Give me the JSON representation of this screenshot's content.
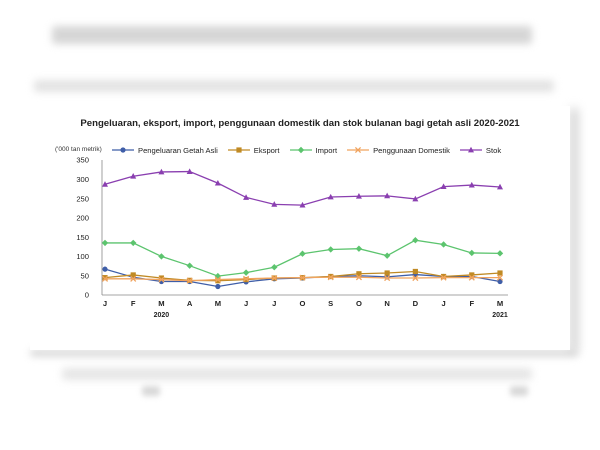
{
  "chart_data": {
    "type": "line",
    "title": "Pengeluaran, eksport, import, penggunaan domestik dan stok bulanan bagi getah asli 2020-2021",
    "ylabel": "('000 tan metrik)",
    "xlabel": "",
    "ylim": [
      0,
      350
    ],
    "yticks": [
      0,
      50,
      100,
      150,
      200,
      250,
      300,
      350
    ],
    "grid": false,
    "legend_position": "top",
    "categories": [
      "J",
      "F",
      "M",
      "A",
      "M",
      "J",
      "J",
      "O",
      "S",
      "O",
      "N",
      "D",
      "J",
      "F",
      "M"
    ],
    "year_labels": [
      {
        "index": 2,
        "label": "2020"
      },
      {
        "index": 14,
        "label": "2021"
      }
    ],
    "series": [
      {
        "name": "Pengeluaran Getah Asli",
        "color": "#3f5ea8",
        "marker": "circle",
        "values": [
          67,
          46,
          35,
          35,
          22,
          34,
          42,
          44,
          48,
          50,
          47,
          53,
          48,
          48,
          35
        ]
      },
      {
        "name": "Eksport",
        "color": "#c08a24",
        "marker": "square",
        "values": [
          45,
          52,
          44,
          38,
          37,
          40,
          44,
          45,
          48,
          55,
          57,
          61,
          48,
          52,
          57
        ]
      },
      {
        "name": "Import",
        "color": "#5cc46e",
        "marker": "diamond",
        "values": [
          135,
          135,
          100,
          76,
          49,
          58,
          72,
          107,
          118,
          120,
          102,
          142,
          131,
          109,
          108
        ]
      },
      {
        "name": "Penggunaan Domestik",
        "color": "#f0a35e",
        "marker": "x",
        "values": [
          42,
          42,
          40,
          37,
          40,
          42,
          44,
          45,
          46,
          46,
          44,
          44,
          45,
          45,
          45
        ]
      },
      {
        "name": "Stok",
        "color": "#8a3fb0",
        "marker": "triangle",
        "values": [
          287,
          308,
          319,
          320,
          290,
          253,
          235,
          233,
          254,
          256,
          257,
          249,
          281,
          285,
          280
        ]
      }
    ]
  }
}
